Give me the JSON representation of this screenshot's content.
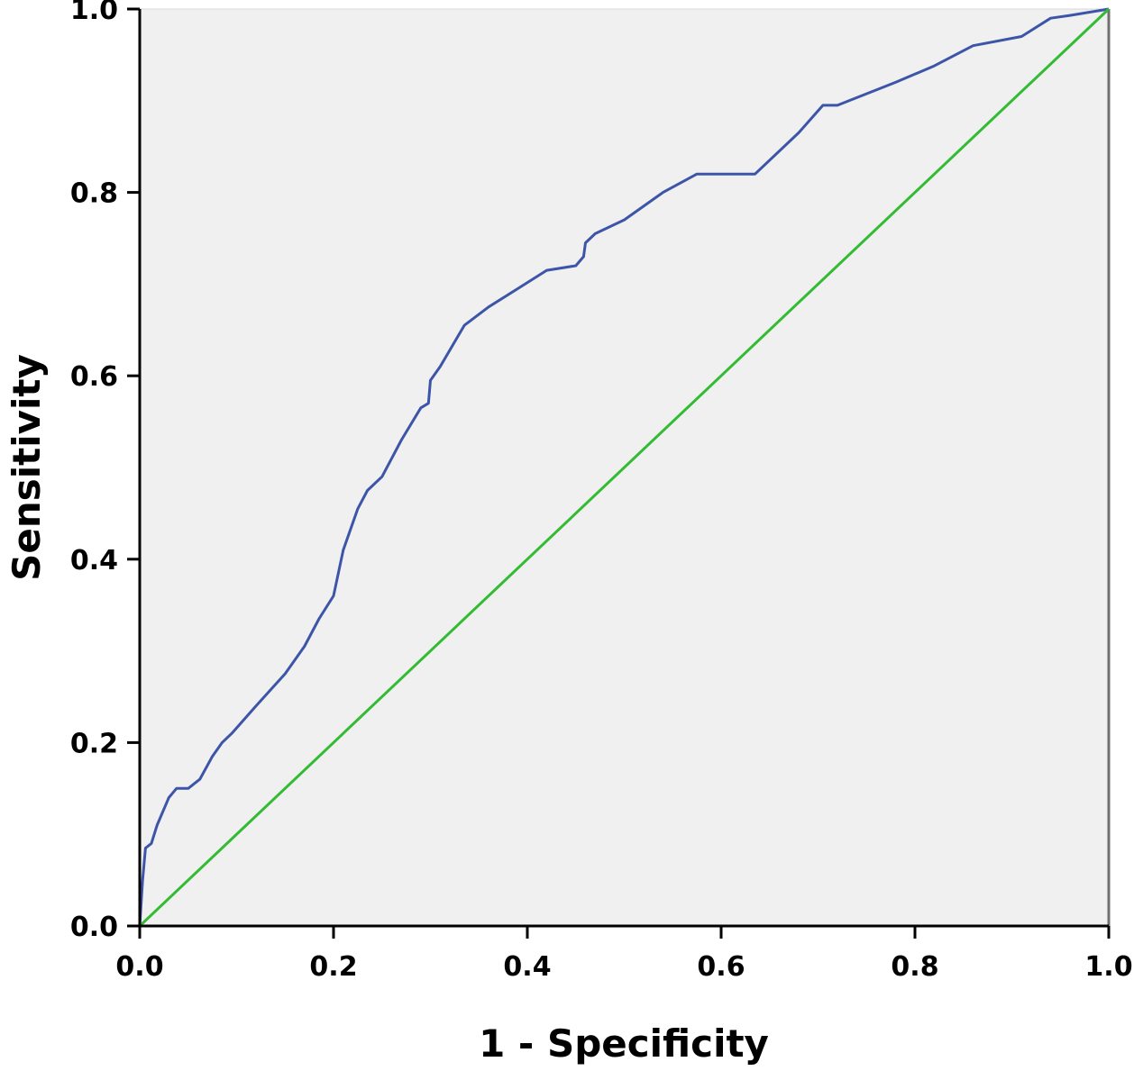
{
  "chart_data": {
    "type": "line",
    "title": "",
    "xlabel": "1 - Specificity",
    "ylabel": "Sensitivity",
    "xlim": [
      0,
      1
    ],
    "ylim": [
      0,
      1
    ],
    "x_ticks": [
      "0.0",
      "0.2",
      "0.4",
      "0.6",
      "0.8",
      "1.0"
    ],
    "y_ticks": [
      "0.0",
      "0.2",
      "0.4",
      "0.6",
      "0.8",
      "1.0"
    ],
    "grid": false,
    "legend": "none",
    "plot_background": "#f0f0f0",
    "series": [
      {
        "color": "#3d55a8",
        "x": [
          0.0,
          0.003,
          0.006,
          0.012,
          0.018,
          0.03,
          0.038,
          0.05,
          0.062,
          0.075,
          0.085,
          0.095,
          0.12,
          0.15,
          0.17,
          0.185,
          0.2,
          0.21,
          0.225,
          0.235,
          0.25,
          0.27,
          0.29,
          0.298,
          0.3,
          0.31,
          0.335,
          0.36,
          0.39,
          0.42,
          0.45,
          0.458,
          0.46,
          0.47,
          0.5,
          0.54,
          0.575,
          0.635,
          0.68,
          0.705,
          0.72,
          0.78,
          0.82,
          0.86,
          0.91,
          0.94,
          0.96,
          1.0
        ],
        "y": [
          0.0,
          0.05,
          0.085,
          0.09,
          0.11,
          0.14,
          0.15,
          0.15,
          0.16,
          0.185,
          0.2,
          0.21,
          0.24,
          0.275,
          0.305,
          0.335,
          0.36,
          0.41,
          0.455,
          0.475,
          0.49,
          0.53,
          0.565,
          0.57,
          0.595,
          0.61,
          0.655,
          0.675,
          0.695,
          0.715,
          0.72,
          0.73,
          0.745,
          0.755,
          0.77,
          0.8,
          0.82,
          0.82,
          0.865,
          0.895,
          0.895,
          0.92,
          0.938,
          0.96,
          0.97,
          0.99,
          0.993,
          1.0
        ]
      },
      {
        "color": "#33bb33",
        "x": [
          0.0,
          1.0
        ],
        "y": [
          0.0,
          1.0
        ]
      }
    ]
  }
}
